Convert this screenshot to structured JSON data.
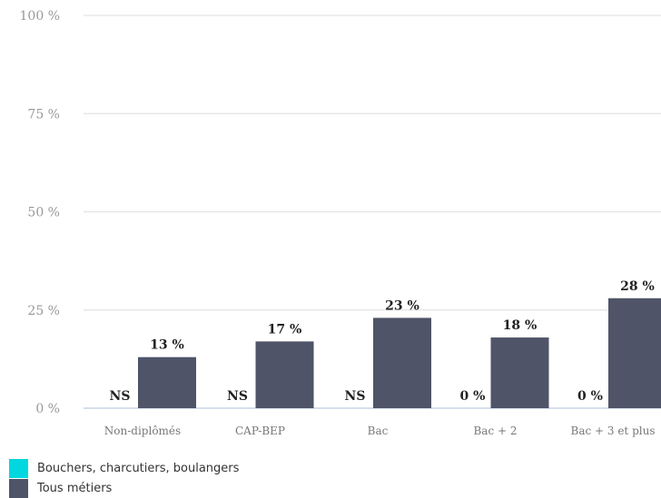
{
  "chart_data": {
    "type": "bar",
    "categories": [
      "Non-diplômés",
      "CAP-BEP",
      "Bac",
      "Bac + 2",
      "Bac + 3 et plus"
    ],
    "series": [
      {
        "name": "Bouchers, charcutiers, boulangers",
        "color": "#00d7de",
        "values": [
          null,
          null,
          null,
          0,
          0
        ],
        "labels": [
          "NS",
          "NS",
          "NS",
          "0 %",
          "0 %"
        ]
      },
      {
        "name": "Tous métiers",
        "color": "#4f5468",
        "values": [
          13,
          17,
          23,
          18,
          28
        ],
        "labels": [
          "13 %",
          "17 %",
          "23 %",
          "18 %",
          "28 %"
        ]
      }
    ],
    "ylim": [
      0,
      100
    ],
    "yticks": [
      0,
      25,
      50,
      75,
      100
    ],
    "ytick_labels": [
      "0 %",
      "25 %",
      "50 %",
      "75 %",
      "100 %"
    ],
    "grid": true,
    "legend_position": "bottom-left"
  }
}
